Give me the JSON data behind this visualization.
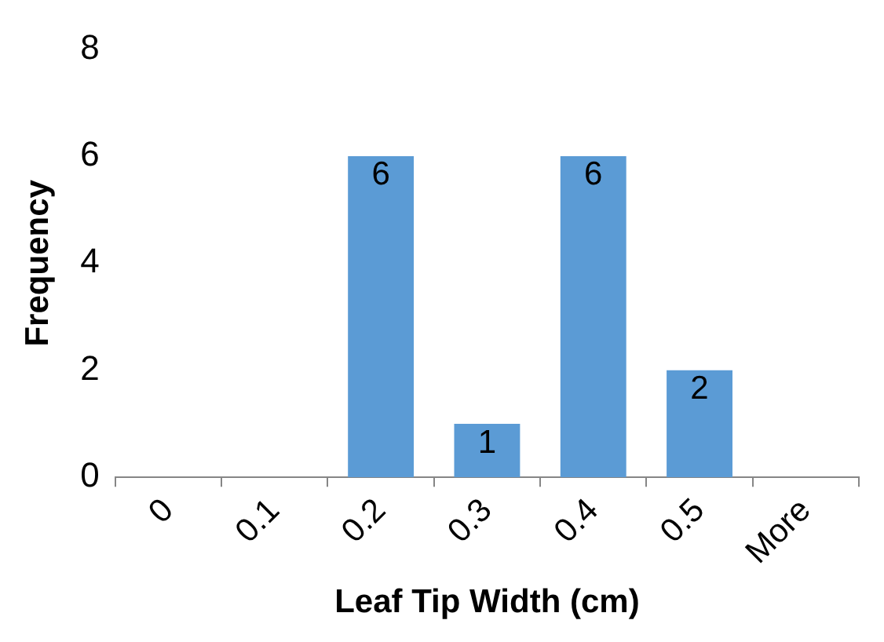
{
  "chart_data": {
    "type": "bar",
    "xlabel": "Leaf Tip Width (cm)",
    "ylabel": "Frequency",
    "categories": [
      "0",
      "0.1",
      "0.2",
      "0.3",
      "0.4",
      "0.5",
      "More"
    ],
    "values": [
      0,
      0,
      6,
      1,
      6,
      2,
      0
    ],
    "color": "#5b9bd5",
    "ylim": [
      0,
      8
    ],
    "yticks": [
      0,
      2,
      4,
      6,
      8
    ],
    "value_labels": [
      null,
      null,
      "6",
      "1",
      "6",
      "2",
      null
    ],
    "grid": false,
    "legend": false
  }
}
